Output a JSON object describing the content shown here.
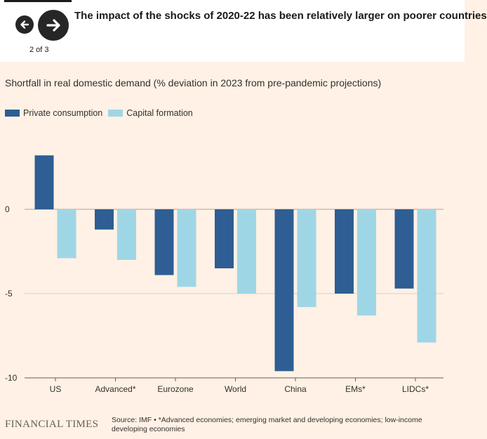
{
  "header": {
    "title": "The impact of the shocks of 2020-22 has been relatively larger on poorer countries",
    "pager": "2 of 3"
  },
  "chart_data": {
    "type": "bar",
    "subtitle": "Shortfall in real domestic demand (% deviation in 2023 from pre-pandemic projections)",
    "categories": [
      "US",
      "Advanced*",
      "Eurozone",
      "World",
      "China",
      "EMs*",
      "LIDCs*"
    ],
    "series": [
      {
        "name": "Private consumption",
        "color": "#2e5e93",
        "values": [
          3.2,
          -1.2,
          -3.9,
          -3.5,
          -9.6,
          -5.0,
          -4.7
        ]
      },
      {
        "name": "Capital formation",
        "color": "#9fd6e6",
        "values": [
          -2.9,
          -3.0,
          -4.6,
          -5.0,
          -5.8,
          -6.3,
          -7.9
        ]
      }
    ],
    "yticks": [
      0,
      -5,
      -10
    ],
    "ytick_labels": [
      "0",
      "-5",
      "-10"
    ],
    "ylim": [
      -10,
      4.4
    ],
    "grid": true,
    "legend_position": "top-left"
  },
  "footer": {
    "logo": "FINANCIAL TIMES",
    "source": "Source: IMF • *Advanced economies; emerging market and developing economies; low-income developing economies"
  }
}
